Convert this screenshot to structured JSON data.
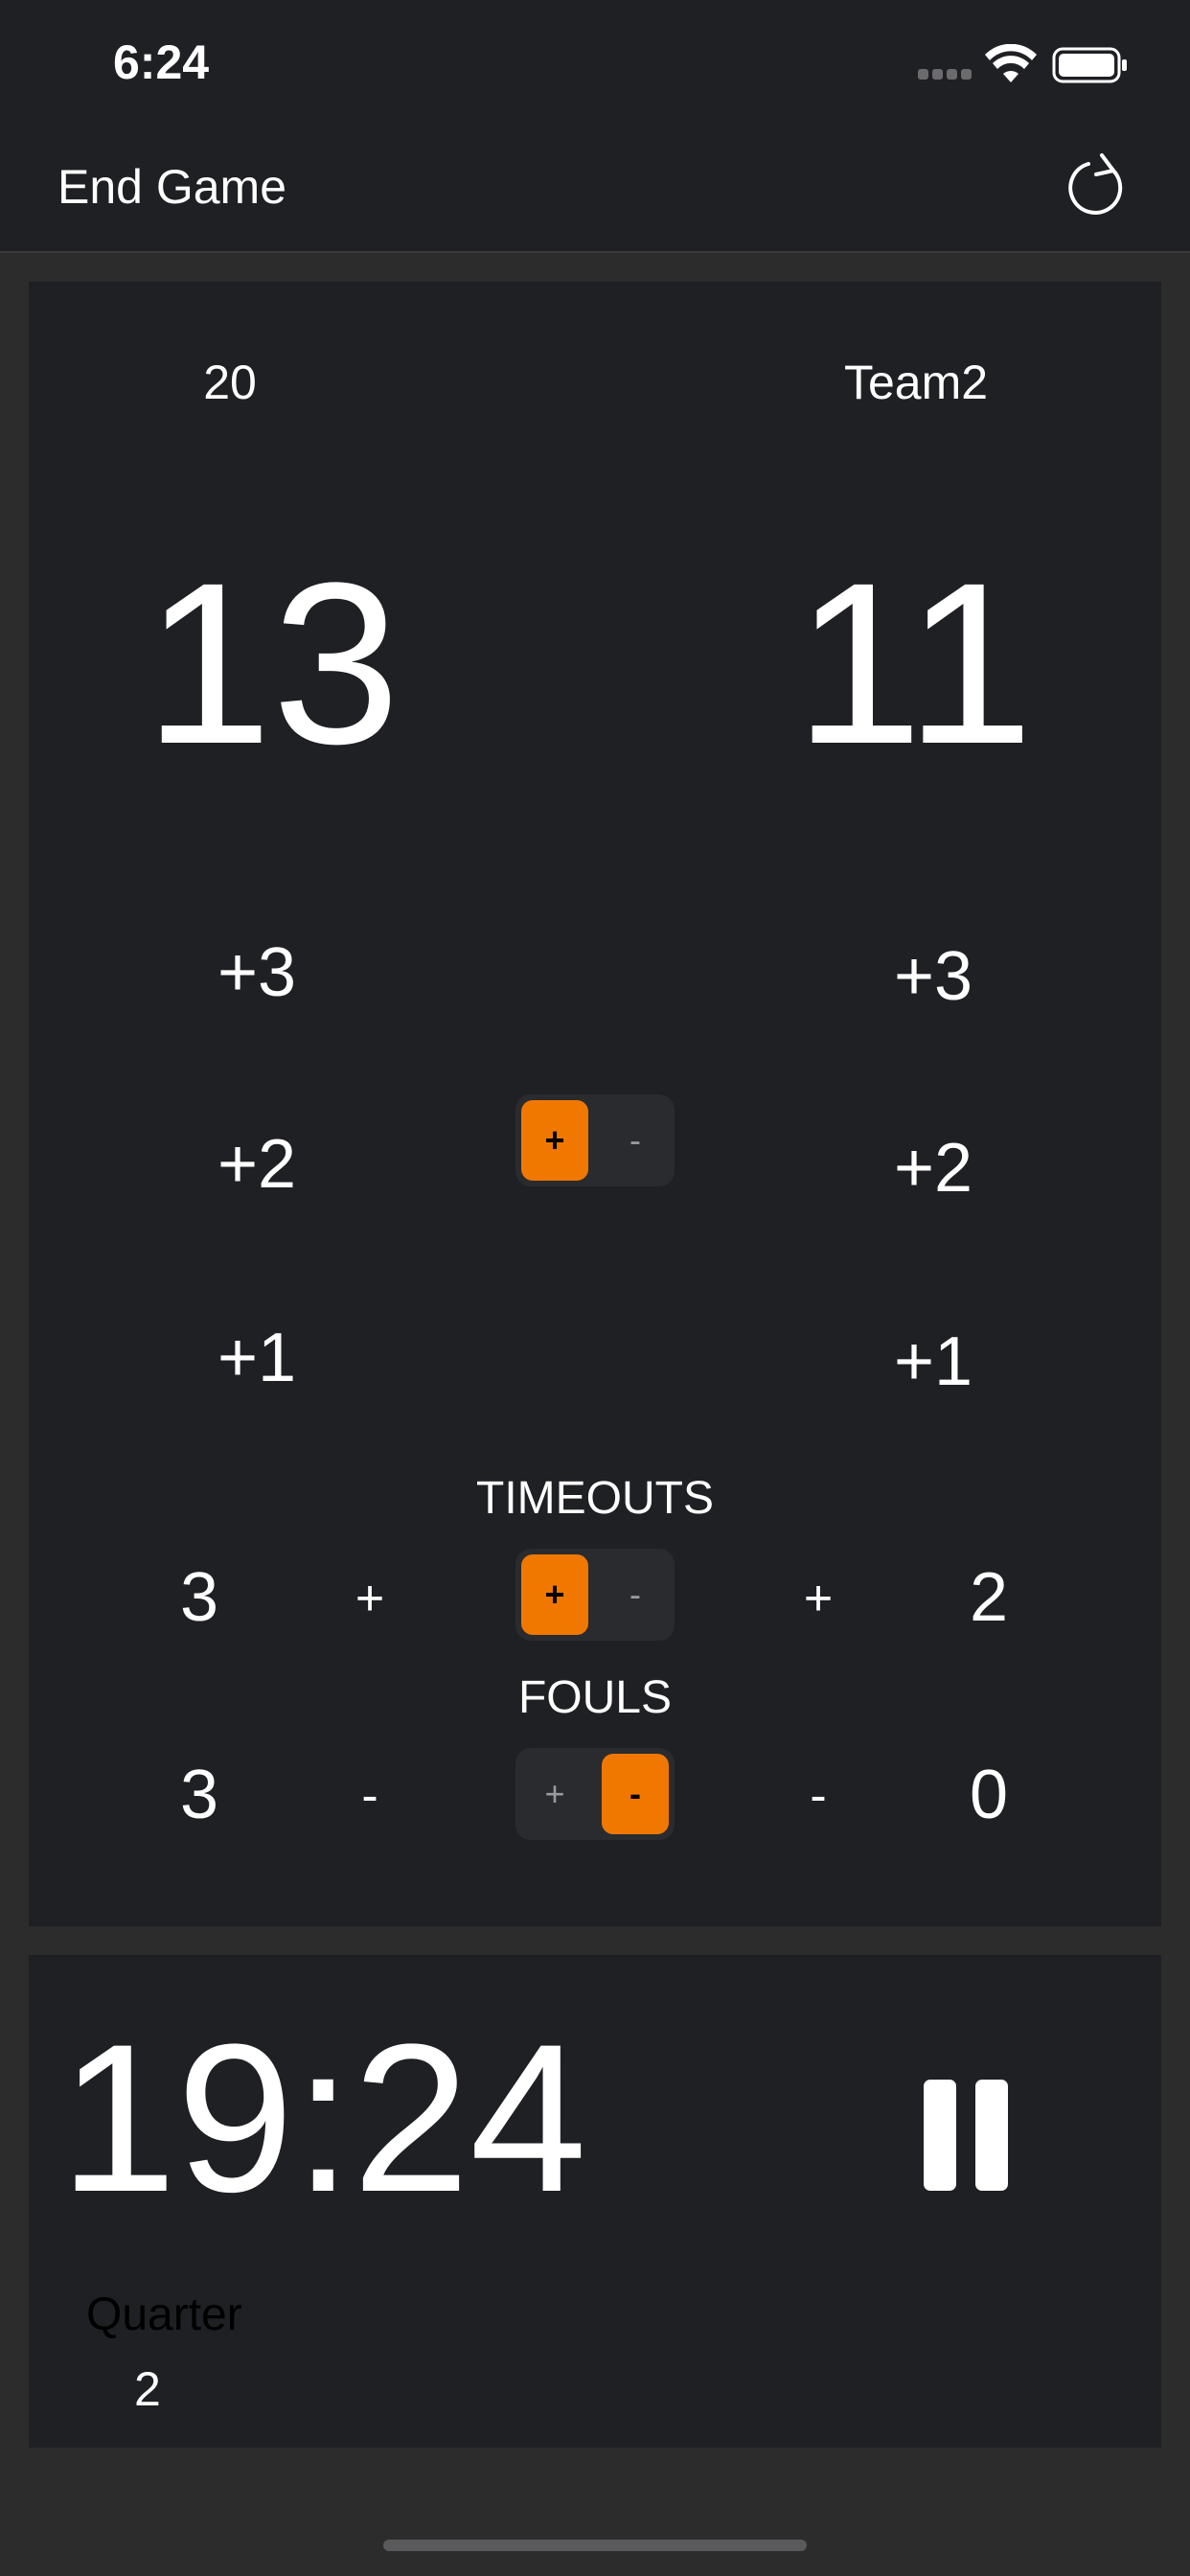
{
  "status_bar": {
    "time": "6:24"
  },
  "header": {
    "end_game_label": "End Game"
  },
  "teams": {
    "home": {
      "name": "20",
      "score": "13",
      "timeouts": "3",
      "fouls": "3"
    },
    "away": {
      "name": "Team2",
      "score": "11",
      "timeouts": "2",
      "fouls": "0"
    }
  },
  "points_buttons": [
    "+3",
    "+2",
    "+1"
  ],
  "score_mode": {
    "options": [
      "+",
      "-"
    ],
    "selected": "+"
  },
  "timeouts": {
    "label": "TIMEOUTS",
    "button_label": "+",
    "options": [
      "+",
      "-"
    ],
    "selected": "+"
  },
  "fouls": {
    "label": "FOULS",
    "button_label": "-",
    "options": [
      "+",
      "-"
    ],
    "selected": "-"
  },
  "timer": {
    "clock": "19:24",
    "state": "running"
  },
  "quarter": {
    "label": "Quarter",
    "value": "2"
  },
  "colors": {
    "accent": "#f07800",
    "panel": "#1f2024",
    "background": "#2c2c2c"
  }
}
